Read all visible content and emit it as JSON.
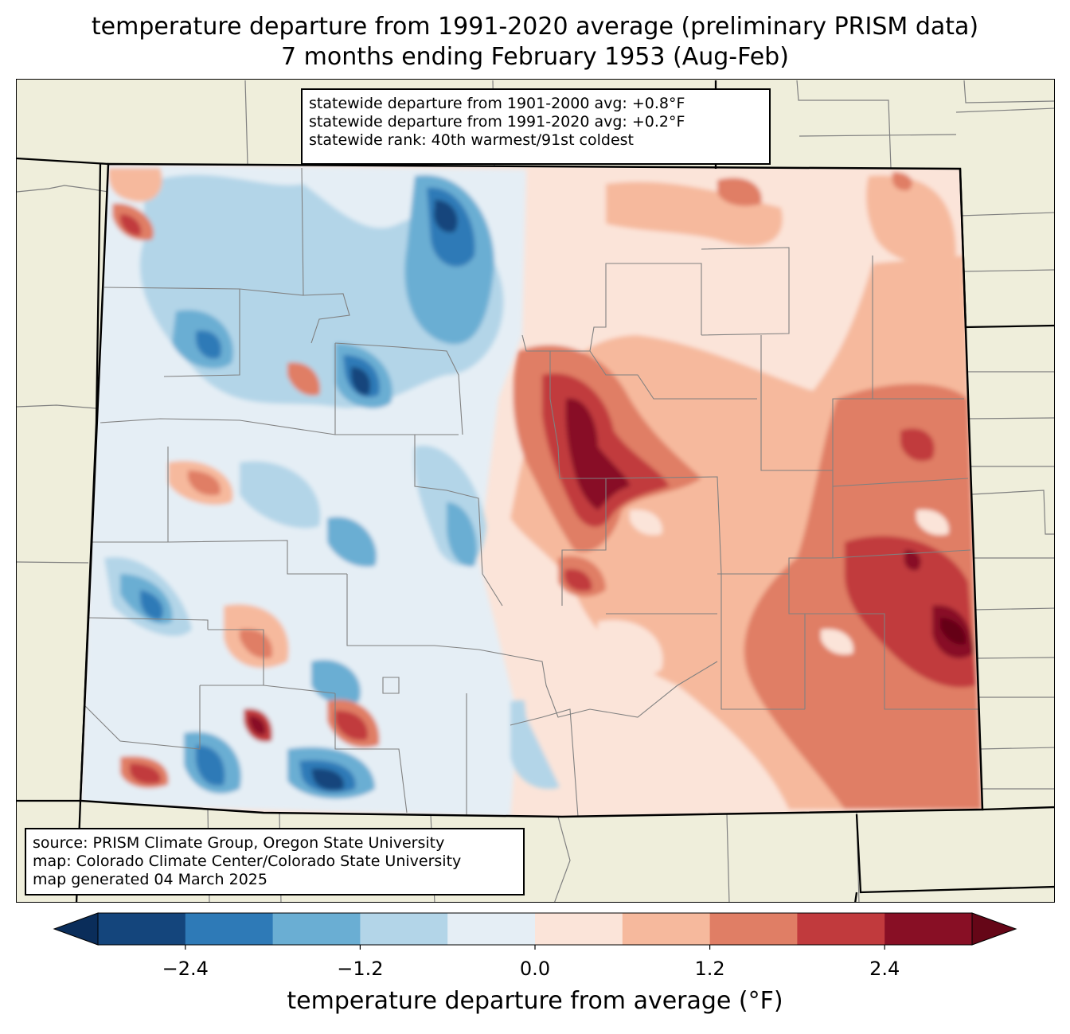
{
  "title": {
    "line1": "temperature departure from 1991-2020 average (preliminary PRISM data)",
    "line2": "7 months ending February 1953 (Aug-Feb)"
  },
  "stats": {
    "line1": "statewide departure from 1901-2000 avg: +0.8°F",
    "line2": "statewide departure from 1991-2020 avg: +0.2°F",
    "line3": "statewide rank: 40th warmest/91st coldest"
  },
  "source": {
    "line1": "source: PRISM Climate Group, Oregon State University",
    "line2": "map: Colorado Climate Center/Colorado State University",
    "line3": "map generated 04 March 2025"
  },
  "colorbar": {
    "label": "temperature departure from average (°F)",
    "ticks": [
      "−2.4",
      "−1.2",
      "0.0",
      "1.2",
      "2.4"
    ],
    "bins": [
      -3.0,
      -2.4,
      -1.8,
      -1.2,
      -0.6,
      0.0,
      0.6,
      1.2,
      1.8,
      2.4,
      3.0
    ],
    "colors": [
      "#14457c",
      "#2e7ab7",
      "#6aaed3",
      "#b3d5e8",
      "#e5eef5",
      "#fbe4d9",
      "#f6b99d",
      "#e07e65",
      "#c13a3d",
      "#880f25"
    ],
    "under_color": "#0a2d5a",
    "over_color": "#650617"
  },
  "palette": {
    "land": "#efeedb",
    "border": "#000000",
    "county": "#808080"
  }
}
